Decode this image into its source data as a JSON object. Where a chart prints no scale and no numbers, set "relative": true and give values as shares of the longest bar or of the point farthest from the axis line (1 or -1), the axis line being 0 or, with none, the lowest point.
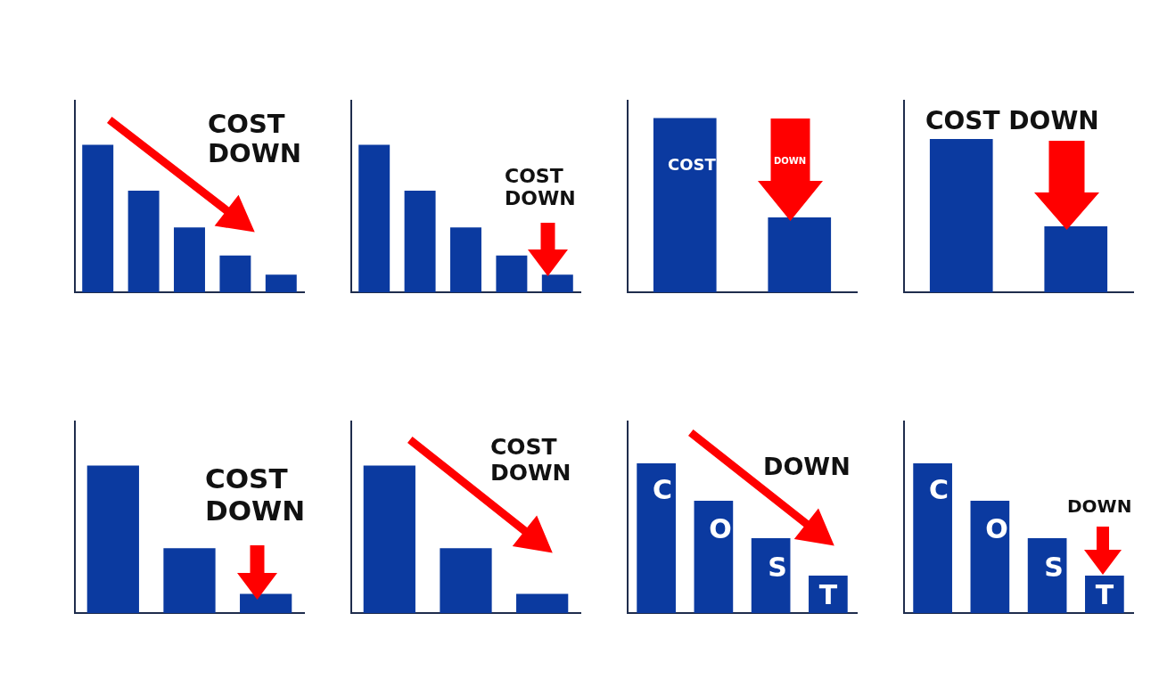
{
  "chart_data": [
    {
      "type": "bar",
      "relative": true,
      "categories": [
        null,
        null,
        null,
        null,
        null
      ],
      "values": [
        1,
        0.69,
        0.44,
        0.25,
        0.12
      ],
      "color": "#0b3aa0",
      "annotations": [
        "COST DOWN"
      ]
    },
    {
      "type": "bar",
      "relative": true,
      "categories": [
        null,
        null,
        null,
        null,
        null
      ],
      "values": [
        1,
        0.69,
        0.44,
        0.25,
        0.12
      ],
      "color": "#0b3aa0",
      "annotations": [
        "COST DOWN"
      ]
    },
    {
      "type": "bar",
      "relative": true,
      "categories": [
        null,
        null
      ],
      "values": [
        1,
        0.43
      ],
      "color": "#0b3aa0",
      "annotations": [
        "DOWN",
        "COST"
      ]
    },
    {
      "type": "bar",
      "relative": true,
      "categories": [
        null,
        null
      ],
      "values": [
        1,
        0.43
      ],
      "color": "#0b3aa0",
      "annotations": [
        "COST DOWN"
      ]
    },
    {
      "type": "bar",
      "relative": true,
      "categories": [
        null,
        null,
        null
      ],
      "values": [
        1,
        0.44,
        0.13
      ],
      "color": "#0b3aa0",
      "annotations": [
        "COST DOWN"
      ]
    },
    {
      "type": "bar",
      "relative": true,
      "categories": [
        null,
        null,
        null
      ],
      "values": [
        1,
        0.44,
        0.13
      ],
      "color": "#0b3aa0",
      "annotations": [
        "COST DOWN"
      ]
    },
    {
      "type": "bar",
      "relative": true,
      "categories": [
        null,
        null,
        null,
        null
      ],
      "values": [
        1,
        0.75,
        0.5,
        0.25
      ],
      "color": "#0b3aa0",
      "annotations": [
        "DOWN",
        "C",
        "O",
        "S",
        "T"
      ]
    },
    {
      "type": "bar",
      "relative": true,
      "categories": [
        null,
        null,
        null,
        null
      ],
      "values": [
        1,
        0.75,
        0.5,
        0.25
      ],
      "color": "#0b3aa0",
      "annotations": [
        "DOWN",
        "C",
        "O",
        "S",
        "T"
      ]
    }
  ]
}
